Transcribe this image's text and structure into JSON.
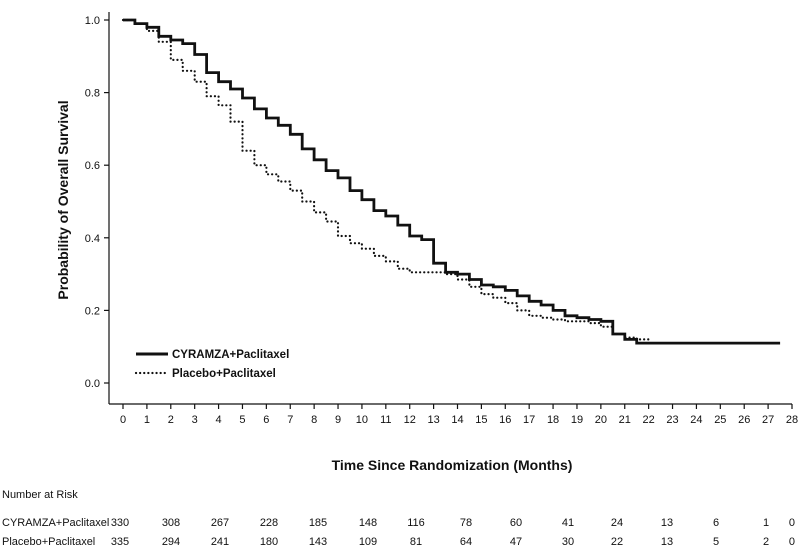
{
  "chart_data": {
    "type": "line",
    "title": "",
    "xlabel": "Time Since Randomization (Months)",
    "ylabel": "Probability of Overall Survival",
    "xlim": [
      0,
      28
    ],
    "ylim": [
      0,
      1.0
    ],
    "x_ticks": [
      0,
      1,
      2,
      3,
      4,
      5,
      6,
      7,
      8,
      9,
      10,
      11,
      12,
      13,
      14,
      15,
      16,
      17,
      18,
      19,
      20,
      21,
      22,
      23,
      24,
      25,
      26,
      27,
      28
    ],
    "y_ticks": [
      0.0,
      0.2,
      0.4,
      0.6,
      0.8,
      1.0
    ],
    "y_tick_labels": [
      "0.0",
      "0.2",
      "0.4",
      "0.6",
      "0.8",
      "1.0"
    ],
    "grid": false,
    "legend_position": "bottom-left",
    "colors": {
      "series": "#111111"
    },
    "series": [
      {
        "name": "CYRAMZA+Paclitaxel",
        "style": "solid",
        "x": [
          0,
          0.5,
          1,
          1.5,
          2,
          2.5,
          3,
          3.5,
          4,
          4.5,
          5,
          5.5,
          6,
          6.5,
          7,
          7.5,
          8,
          8.5,
          9,
          9.5,
          10,
          10.5,
          11,
          11.5,
          12,
          12.5,
          13,
          13.5,
          14,
          14.5,
          15,
          15.5,
          16,
          16.5,
          17,
          17.5,
          18,
          18.5,
          19,
          19.5,
          20,
          20.5,
          21,
          21.5,
          22,
          23,
          24,
          25,
          26,
          27,
          27.5
        ],
        "y": [
          1.0,
          0.99,
          0.98,
          0.955,
          0.945,
          0.935,
          0.905,
          0.855,
          0.83,
          0.81,
          0.785,
          0.755,
          0.73,
          0.71,
          0.685,
          0.645,
          0.615,
          0.585,
          0.565,
          0.53,
          0.505,
          0.475,
          0.46,
          0.435,
          0.405,
          0.395,
          0.33,
          0.305,
          0.3,
          0.285,
          0.27,
          0.265,
          0.255,
          0.24,
          0.225,
          0.215,
          0.2,
          0.185,
          0.18,
          0.175,
          0.17,
          0.135,
          0.12,
          0.11,
          0.11,
          0.11,
          0.11,
          0.11,
          0.11,
          0.11,
          0.11
        ]
      },
      {
        "name": "Placebo+Paclitaxel",
        "style": "dotted",
        "x": [
          0,
          0.5,
          1,
          1.5,
          2,
          2.5,
          3,
          3.5,
          4,
          4.5,
          5,
          5.5,
          6,
          6.5,
          7,
          7.5,
          8,
          8.5,
          9,
          9.5,
          10,
          10.5,
          11,
          11.5,
          12,
          12.5,
          13,
          13.5,
          14,
          14.5,
          15,
          15.5,
          16,
          16.5,
          17,
          17.5,
          18,
          18.5,
          19,
          19.5,
          20,
          20.5,
          21,
          21.5,
          22
        ],
        "y": [
          1.0,
          0.99,
          0.97,
          0.94,
          0.89,
          0.86,
          0.83,
          0.79,
          0.765,
          0.72,
          0.64,
          0.6,
          0.575,
          0.555,
          0.53,
          0.5,
          0.47,
          0.445,
          0.405,
          0.385,
          0.37,
          0.35,
          0.335,
          0.315,
          0.305,
          0.305,
          0.305,
          0.3,
          0.285,
          0.265,
          0.245,
          0.235,
          0.22,
          0.2,
          0.185,
          0.18,
          0.175,
          0.17,
          0.17,
          0.165,
          0.155,
          0.135,
          0.125,
          0.12,
          0.115
        ]
      }
    ],
    "risk_table": {
      "heading": "Number at Risk",
      "x": [
        0,
        2,
        4,
        6,
        8,
        10,
        12,
        14,
        16,
        18,
        20,
        22,
        24,
        26,
        28
      ],
      "rows": [
        {
          "label": "CYRAMZA+Paclitaxel",
          "values": [
            "330",
            "308",
            "267",
            "228",
            "185",
            "148",
            "116",
            "78",
            "60",
            "41",
            "24",
            "13",
            "6",
            "1",
            "0"
          ]
        },
        {
          "label": "Placebo+Paclitaxel",
          "values": [
            "335",
            "294",
            "241",
            "180",
            "143",
            "109",
            "81",
            "64",
            "47",
            "30",
            "22",
            "13",
            "5",
            "2",
            "0"
          ]
        }
      ]
    }
  }
}
